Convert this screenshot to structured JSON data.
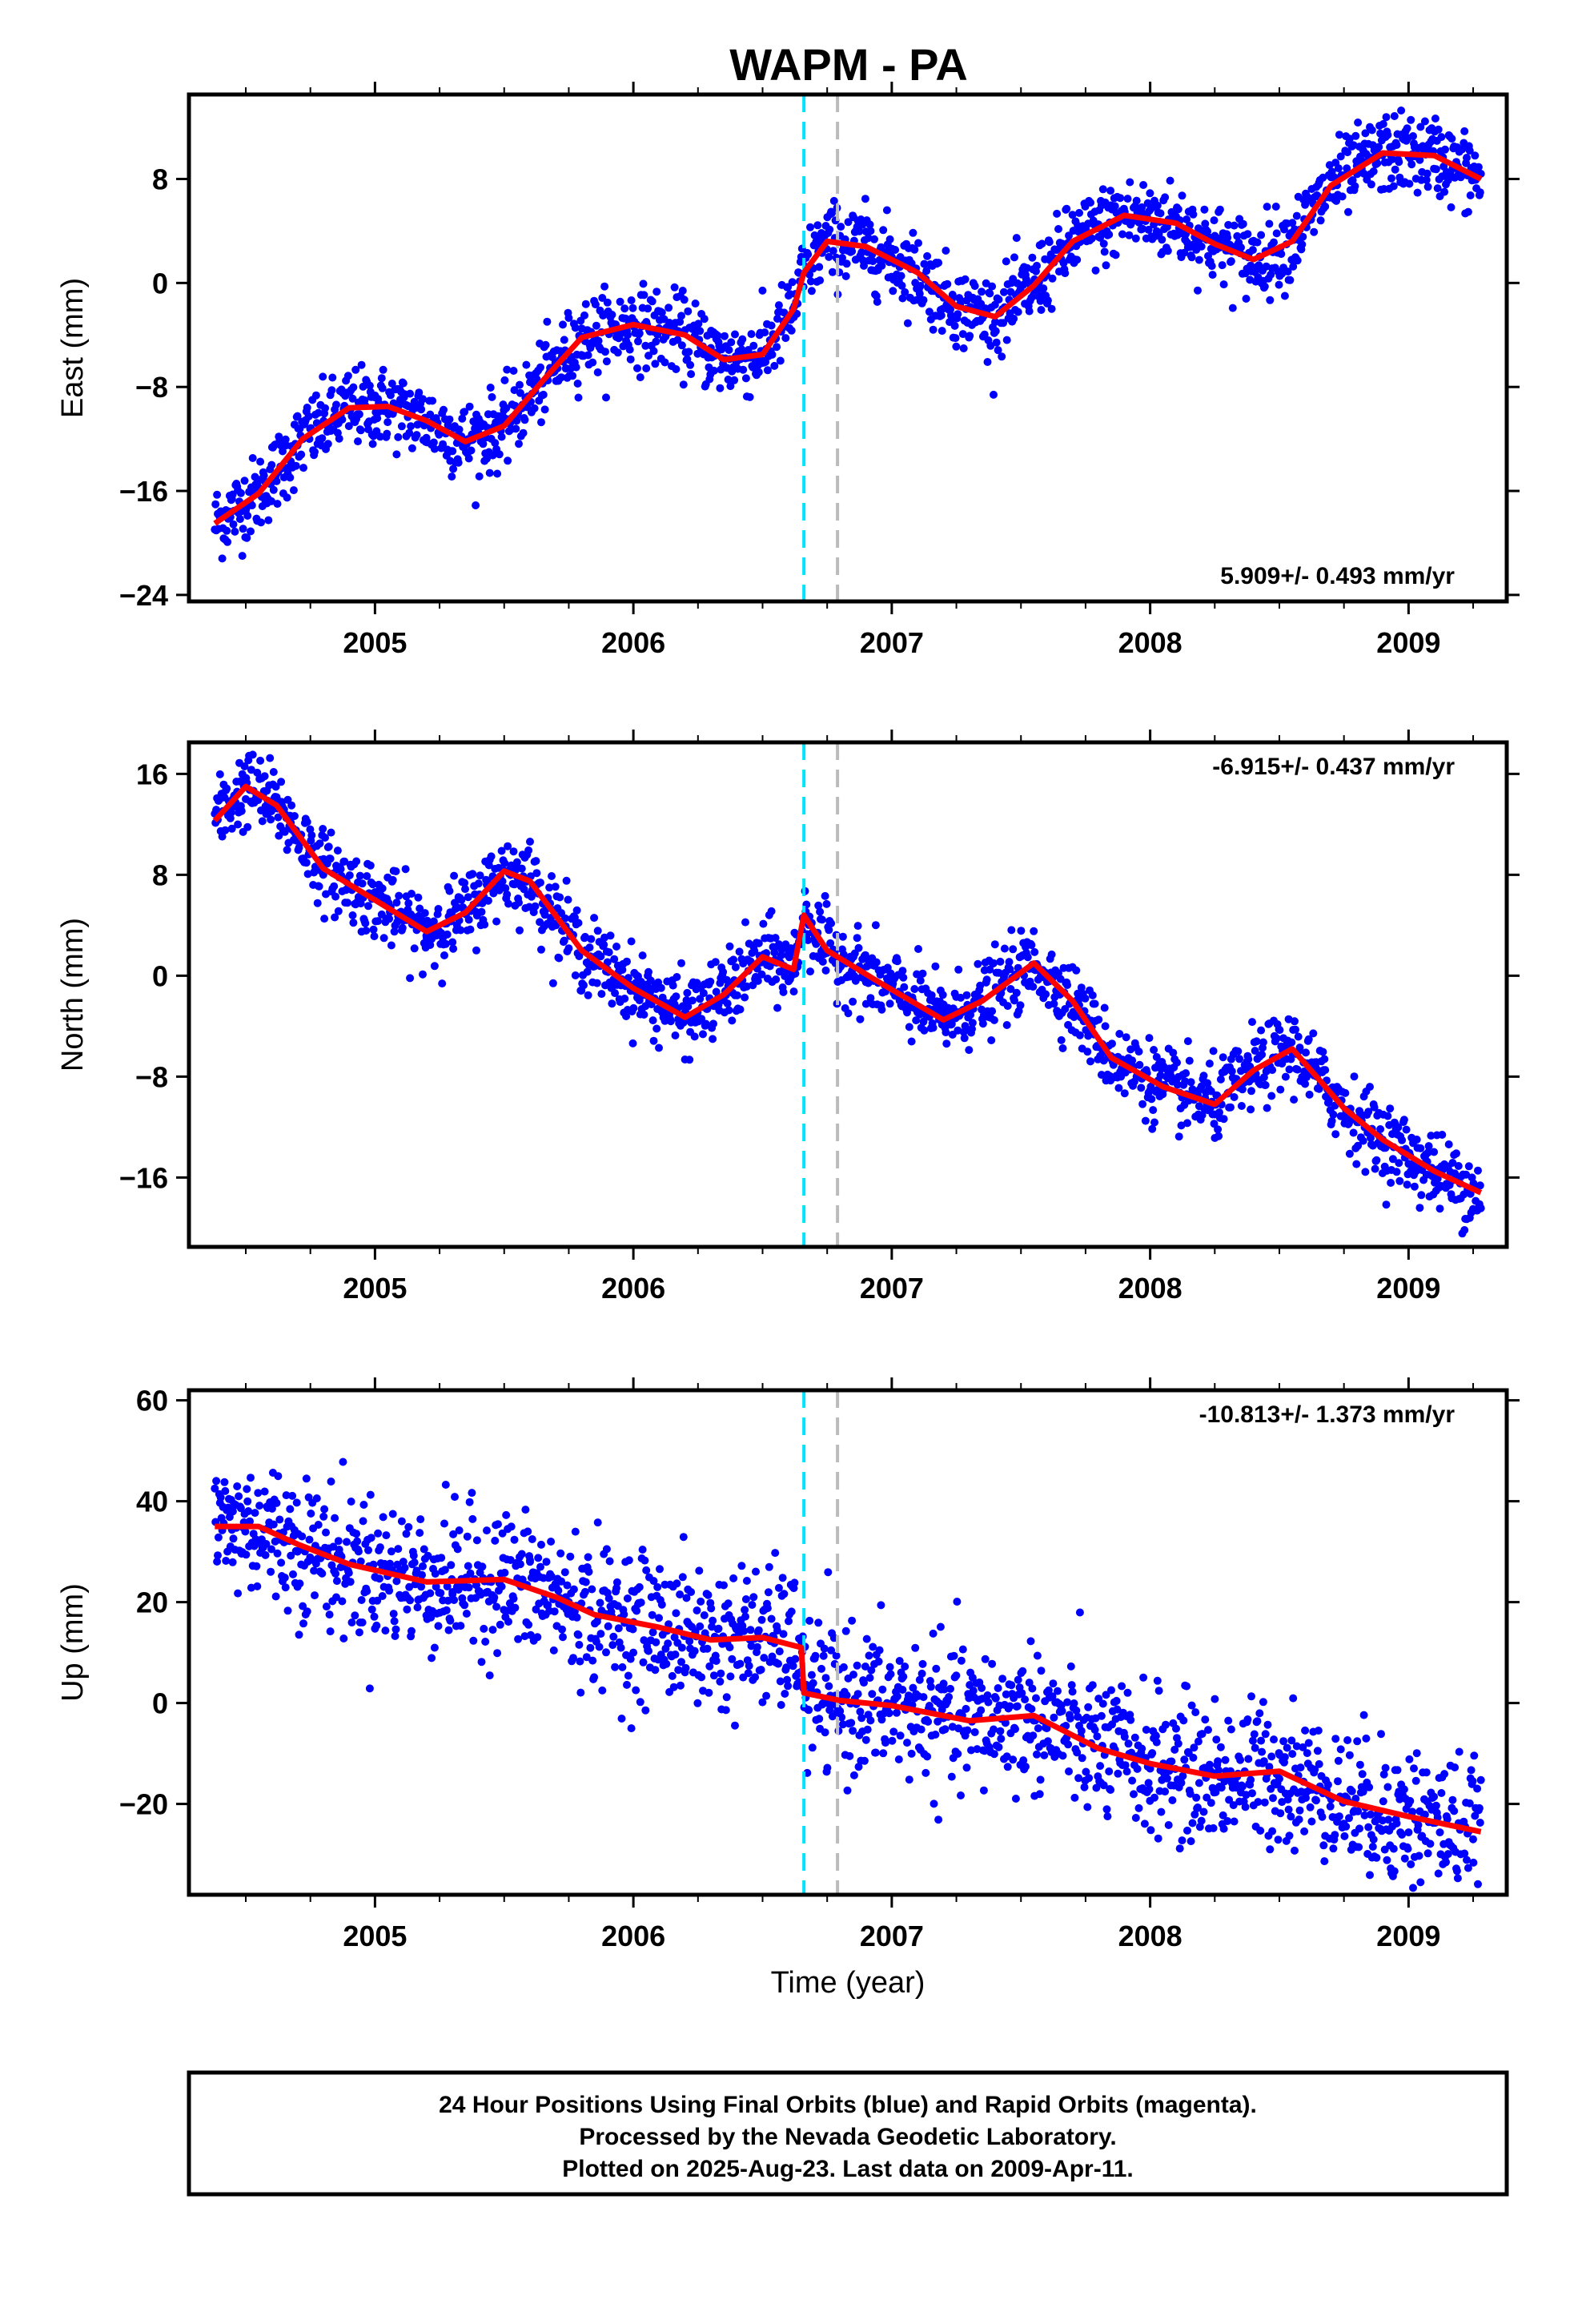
{
  "title": "WAPM - PA",
  "xlabel": "Time (year)",
  "caption": [
    "24 Hour Positions Using Final Orbits (blue) and Rapid Orbits (magenta).",
    "Processed by the Nevada Geodetic Laboratory.",
    "Plotted on 2025-Aug-23. Last data on 2009-Apr-11."
  ],
  "colors": {
    "data_points": "#0000ff",
    "model_line": "#ff0000",
    "equipment_change_line": "#00e5ff",
    "other_event_line": "#bbbbbb"
  },
  "chart_data": [
    {
      "type": "scatter",
      "component": "east",
      "ylabel": "East (mm)",
      "rate_label": "5.909+/- 0.493 mm/yr",
      "xlim": [
        2004.28,
        2009.38
      ],
      "ylim": [
        -24.5,
        14.5
      ],
      "yticks": [
        -24,
        -16,
        -8,
        0,
        8
      ],
      "xticks": [
        2005,
        2006,
        2007,
        2008,
        2009
      ],
      "event_lines": [
        2006.66,
        2006.79
      ],
      "model": [
        [
          2004.38,
          -18.5
        ],
        [
          2004.55,
          -16.2
        ],
        [
          2004.72,
          -12.0
        ],
        [
          2004.9,
          -9.6
        ],
        [
          2005.05,
          -9.5
        ],
        [
          2005.2,
          -10.6
        ],
        [
          2005.35,
          -12.2
        ],
        [
          2005.5,
          -11.0
        ],
        [
          2005.65,
          -7.5
        ],
        [
          2005.8,
          -4.2
        ],
        [
          2006.0,
          -3.2
        ],
        [
          2006.2,
          -4.0
        ],
        [
          2006.35,
          -5.9
        ],
        [
          2006.5,
          -5.5
        ],
        [
          2006.62,
          -2.0
        ],
        [
          2006.66,
          0.8
        ],
        [
          2006.75,
          3.2
        ],
        [
          2006.9,
          2.8
        ],
        [
          2007.1,
          0.8
        ],
        [
          2007.25,
          -1.8
        ],
        [
          2007.4,
          -2.6
        ],
        [
          2007.55,
          -0.2
        ],
        [
          2007.7,
          3.2
        ],
        [
          2007.9,
          5.2
        ],
        [
          2008.1,
          4.6
        ],
        [
          2008.25,
          3.0
        ],
        [
          2008.4,
          1.8
        ],
        [
          2008.55,
          3.2
        ],
        [
          2008.7,
          7.5
        ],
        [
          2008.9,
          10.0
        ],
        [
          2009.1,
          9.8
        ],
        [
          2009.28,
          8.0
        ]
      ],
      "samples": [
        {
          "t": 2004.5,
          "y": -17.5
        },
        {
          "t": 2004.6,
          "y": -14.0
        },
        {
          "t": 2004.7,
          "y": -12.5
        },
        {
          "t": 2005.0,
          "y": -8.8
        },
        {
          "t": 2005.4,
          "y": -11.5
        },
        {
          "t": 2005.8,
          "y": -3.5
        },
        {
          "t": 2006.05,
          "y": -3.0
        },
        {
          "t": 2006.3,
          "y": -5.0
        },
        {
          "t": 2006.72,
          "y": 3.5
        },
        {
          "t": 2007.0,
          "y": 2.0
        },
        {
          "t": 2007.4,
          "y": -3.0
        },
        {
          "t": 2007.8,
          "y": 4.5
        },
        {
          "t": 2008.3,
          "y": 2.5
        },
        {
          "t": 2008.8,
          "y": 9.0
        },
        {
          "t": 2009.2,
          "y": 8.5
        }
      ]
    },
    {
      "type": "scatter",
      "component": "north",
      "ylabel": "North (mm)",
      "rate_label": "-6.915+/- 0.437 mm/yr",
      "xlim": [
        2004.28,
        2009.38
      ],
      "ylim": [
        -21.5,
        18.5
      ],
      "yticks": [
        -16,
        -8,
        0,
        8,
        16
      ],
      "xticks": [
        2005,
        2006,
        2007,
        2008,
        2009
      ],
      "event_lines": [
        2006.66,
        2006.79
      ],
      "model": [
        [
          2004.38,
          12.3
        ],
        [
          2004.5,
          15.0
        ],
        [
          2004.62,
          13.5
        ],
        [
          2004.8,
          8.5
        ],
        [
          2005.0,
          6.0
        ],
        [
          2005.2,
          3.5
        ],
        [
          2005.35,
          5.0
        ],
        [
          2005.5,
          8.3
        ],
        [
          2005.6,
          7.5
        ],
        [
          2005.8,
          2.0
        ],
        [
          2006.0,
          -1.0
        ],
        [
          2006.2,
          -3.3
        ],
        [
          2006.35,
          -1.5
        ],
        [
          2006.5,
          1.5
        ],
        [
          2006.62,
          0.5
        ],
        [
          2006.66,
          4.8
        ],
        [
          2006.75,
          2.0
        ],
        [
          2006.95,
          -0.5
        ],
        [
          2007.2,
          -3.5
        ],
        [
          2007.35,
          -2.0
        ],
        [
          2007.55,
          1.0
        ],
        [
          2007.7,
          -2.0
        ],
        [
          2007.85,
          -6.5
        ],
        [
          2008.05,
          -8.8
        ],
        [
          2008.25,
          -10.2
        ],
        [
          2008.4,
          -7.5
        ],
        [
          2008.55,
          -5.8
        ],
        [
          2008.75,
          -10.5
        ],
        [
          2008.9,
          -13.0
        ],
        [
          2009.1,
          -15.5
        ],
        [
          2009.28,
          -17.2
        ]
      ],
      "samples": [
        {
          "t": 2004.5,
          "y": 14.0
        },
        {
          "t": 2004.8,
          "y": 8.0
        },
        {
          "t": 2005.2,
          "y": 3.0
        },
        {
          "t": 2005.55,
          "y": 9.0
        },
        {
          "t": 2005.9,
          "y": 0.5
        },
        {
          "t": 2006.25,
          "y": -3.5
        },
        {
          "t": 2006.55,
          "y": 3.0
        },
        {
          "t": 2006.9,
          "y": -0.5
        },
        {
          "t": 2007.3,
          "y": -3.0
        },
        {
          "t": 2007.55,
          "y": 0.5
        },
        {
          "t": 2007.9,
          "y": -7.5
        },
        {
          "t": 2008.25,
          "y": -11.0
        },
        {
          "t": 2008.55,
          "y": -6.0
        },
        {
          "t": 2008.9,
          "y": -13.0
        },
        {
          "t": 2009.25,
          "y": -18.5
        }
      ]
    },
    {
      "type": "scatter",
      "component": "up",
      "ylabel": "Up (mm)",
      "rate_label": "-10.813+/- 1.373 mm/yr",
      "xlim": [
        2004.28,
        2009.38
      ],
      "ylim": [
        -38,
        62
      ],
      "yticks": [
        -20,
        0,
        20,
        40,
        60
      ],
      "xticks": [
        2005,
        2006,
        2007,
        2008,
        2009
      ],
      "event_lines": [
        2006.66,
        2006.79
      ],
      "model": [
        [
          2004.38,
          35.0
        ],
        [
          2004.55,
          35.0
        ],
        [
          2004.7,
          31.5
        ],
        [
          2004.9,
          27.5
        ],
        [
          2005.2,
          24.0
        ],
        [
          2005.5,
          24.5
        ],
        [
          2005.7,
          21.0
        ],
        [
          2005.85,
          17.5
        ],
        [
          2006.1,
          15.0
        ],
        [
          2006.3,
          12.5
        ],
        [
          2006.5,
          13.0
        ],
        [
          2006.65,
          11.0
        ],
        [
          2006.66,
          2.0
        ],
        [
          2006.8,
          0.5
        ],
        [
          2007.0,
          -0.5
        ],
        [
          2007.3,
          -3.5
        ],
        [
          2007.55,
          -2.5
        ],
        [
          2007.8,
          -9.0
        ],
        [
          2008.0,
          -12.0
        ],
        [
          2008.25,
          -14.5
        ],
        [
          2008.5,
          -13.5
        ],
        [
          2008.75,
          -19.5
        ],
        [
          2009.0,
          -22.5
        ],
        [
          2009.28,
          -25.5
        ]
      ],
      "samples": [
        {
          "t": 2004.45,
          "y": 38.0
        },
        {
          "t": 2004.7,
          "y": 30.0
        },
        {
          "t": 2005.0,
          "y": 25.0
        },
        {
          "t": 2005.3,
          "y": 22.0
        },
        {
          "t": 2005.6,
          "y": 28.0
        },
        {
          "t": 2006.0,
          "y": 10.0
        },
        {
          "t": 2006.4,
          "y": 15.0
        },
        {
          "t": 2006.75,
          "y": 0.0
        },
        {
          "t": 2007.2,
          "y": -3.0
        },
        {
          "t": 2007.6,
          "y": -5.0
        },
        {
          "t": 2008.0,
          "y": -13.0
        },
        {
          "t": 2008.5,
          "y": -15.0
        },
        {
          "t": 2009.0,
          "y": -20.0
        },
        {
          "t": 2009.25,
          "y": -27.0
        }
      ]
    }
  ]
}
